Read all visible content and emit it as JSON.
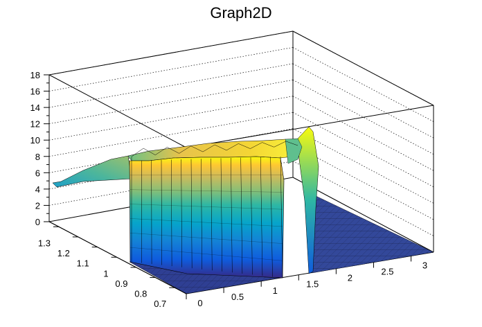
{
  "chart_data": {
    "type": "surface",
    "title": "Graph2D",
    "xlabel": "",
    "ylabel": "",
    "zlabel": "",
    "xlim": [
      0,
      3.3
    ],
    "ylim": [
      0.64,
      1.35
    ],
    "zlim": [
      0,
      18
    ],
    "grid": true,
    "x_ticks": [
      "0",
      "0.5",
      "1",
      "1.5",
      "2",
      "2.5",
      "3"
    ],
    "y_ticks": [
      "0.7",
      "0.8",
      "0.9",
      "1",
      "1.1",
      "1.2",
      "1.3"
    ],
    "z_ticks": [
      "0",
      "2",
      "4",
      "6",
      "8",
      "10",
      "12",
      "14",
      "16",
      "18"
    ],
    "colormap": [
      "#352a87",
      "#0f5cdd",
      "#1481d6",
      "#06a4ca",
      "#2eb7a4",
      "#87bf77",
      "#d1bb59",
      "#fec832",
      "#f9fb0e"
    ],
    "surface_description_values": {
      "plateau_x_range": [
        0.55,
        1.48
      ],
      "plateau_z_approx": 10,
      "left_shoulder_x_range": [
        0,
        0.55
      ],
      "left_shoulder_z_approx": [
        4.5,
        7.5
      ],
      "spike_x_approx": 1.85,
      "spike_z_peak": 11.8,
      "floor_z": 0
    }
  }
}
